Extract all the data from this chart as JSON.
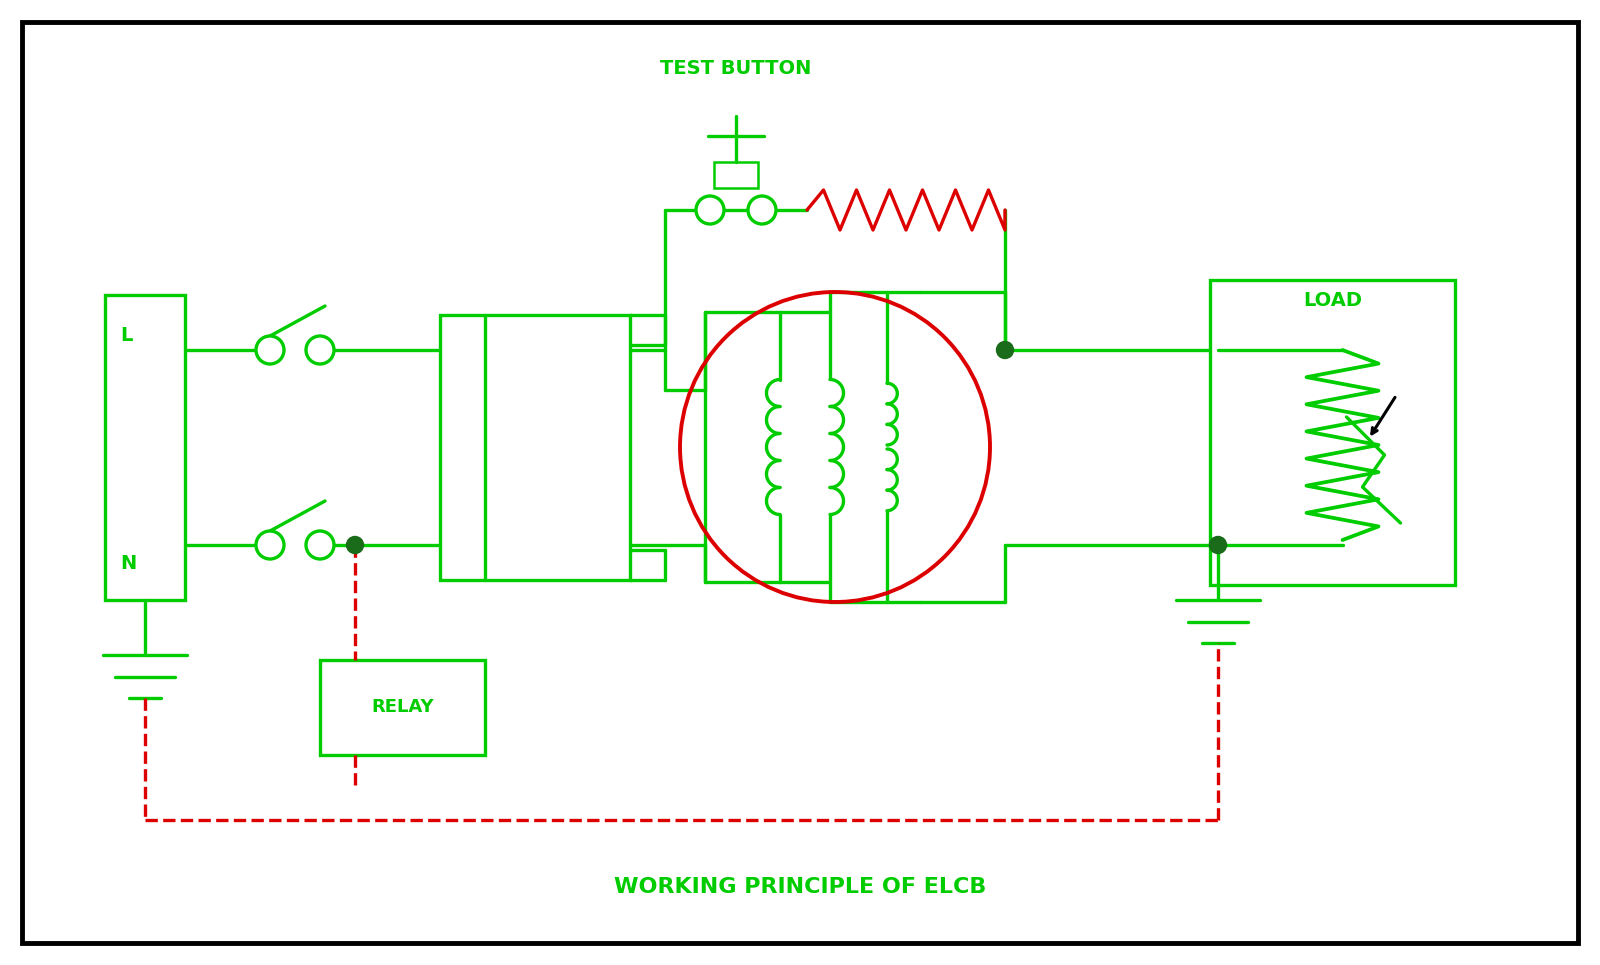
{
  "bg_color": "#ffffff",
  "border_color": "#111111",
  "green": "#00cc00",
  "red": "#dd0000",
  "black": "#000000",
  "title": "WORKING PRINCIPLE OF ELCB",
  "test_button_label": "TEST BUTTON",
  "load_label": "LOAD",
  "relay_label": "RELAY",
  "L_label": "L",
  "N_label": "N",
  "figw": 16.0,
  "figh": 9.65,
  "lw": 2.4,
  "lw_thick": 3.5
}
